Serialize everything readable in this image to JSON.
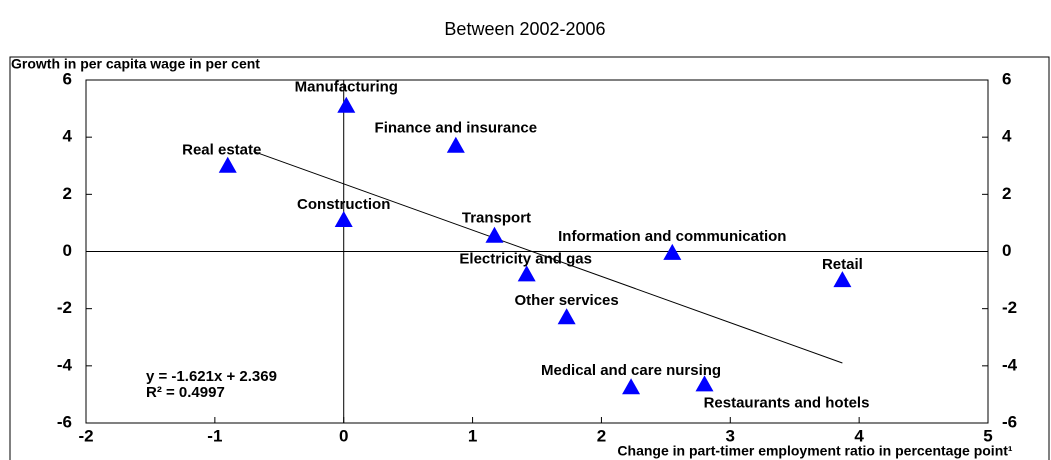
{
  "chart_data": {
    "type": "scatter",
    "title": "Between 2002-2006",
    "y_label": "Growth in per capita wage in per cent",
    "x_label": "Change in part-timer employment ratio in percentage point¹",
    "labels": [
      "Manufacturing",
      "Finance and insurance",
      "Real estate",
      "Construction",
      "Transport",
      "Information and communication",
      "Retail",
      "Electricity and gas",
      "Other services",
      "Medical and care nursing",
      "Restaurants and hotels"
    ],
    "x": [
      0.02,
      0.87,
      -0.9,
      0.0,
      1.17,
      2.55,
      3.87,
      1.42,
      1.73,
      2.23,
      2.8
    ],
    "y": [
      5.1,
      3.7,
      3.0,
      1.1,
      0.55,
      -0.05,
      -1.0,
      -0.8,
      -2.3,
      -4.75,
      -4.65
    ],
    "color": "#0000ff",
    "trendline": {
      "x": [
        -0.7,
        3.87
      ],
      "y": [
        3.5,
        -3.9
      ]
    },
    "annotations": [
      "y  = -1.621x + 2.369",
      "R² = 0.4997"
    ],
    "xlim": [
      -2,
      5
    ],
    "xticks": [
      -2,
      -1,
      0,
      1,
      2,
      3,
      4,
      5
    ],
    "ylim": [
      -6,
      6
    ],
    "yticks": [
      -6,
      -4,
      -2,
      0,
      2,
      4,
      6
    ]
  }
}
